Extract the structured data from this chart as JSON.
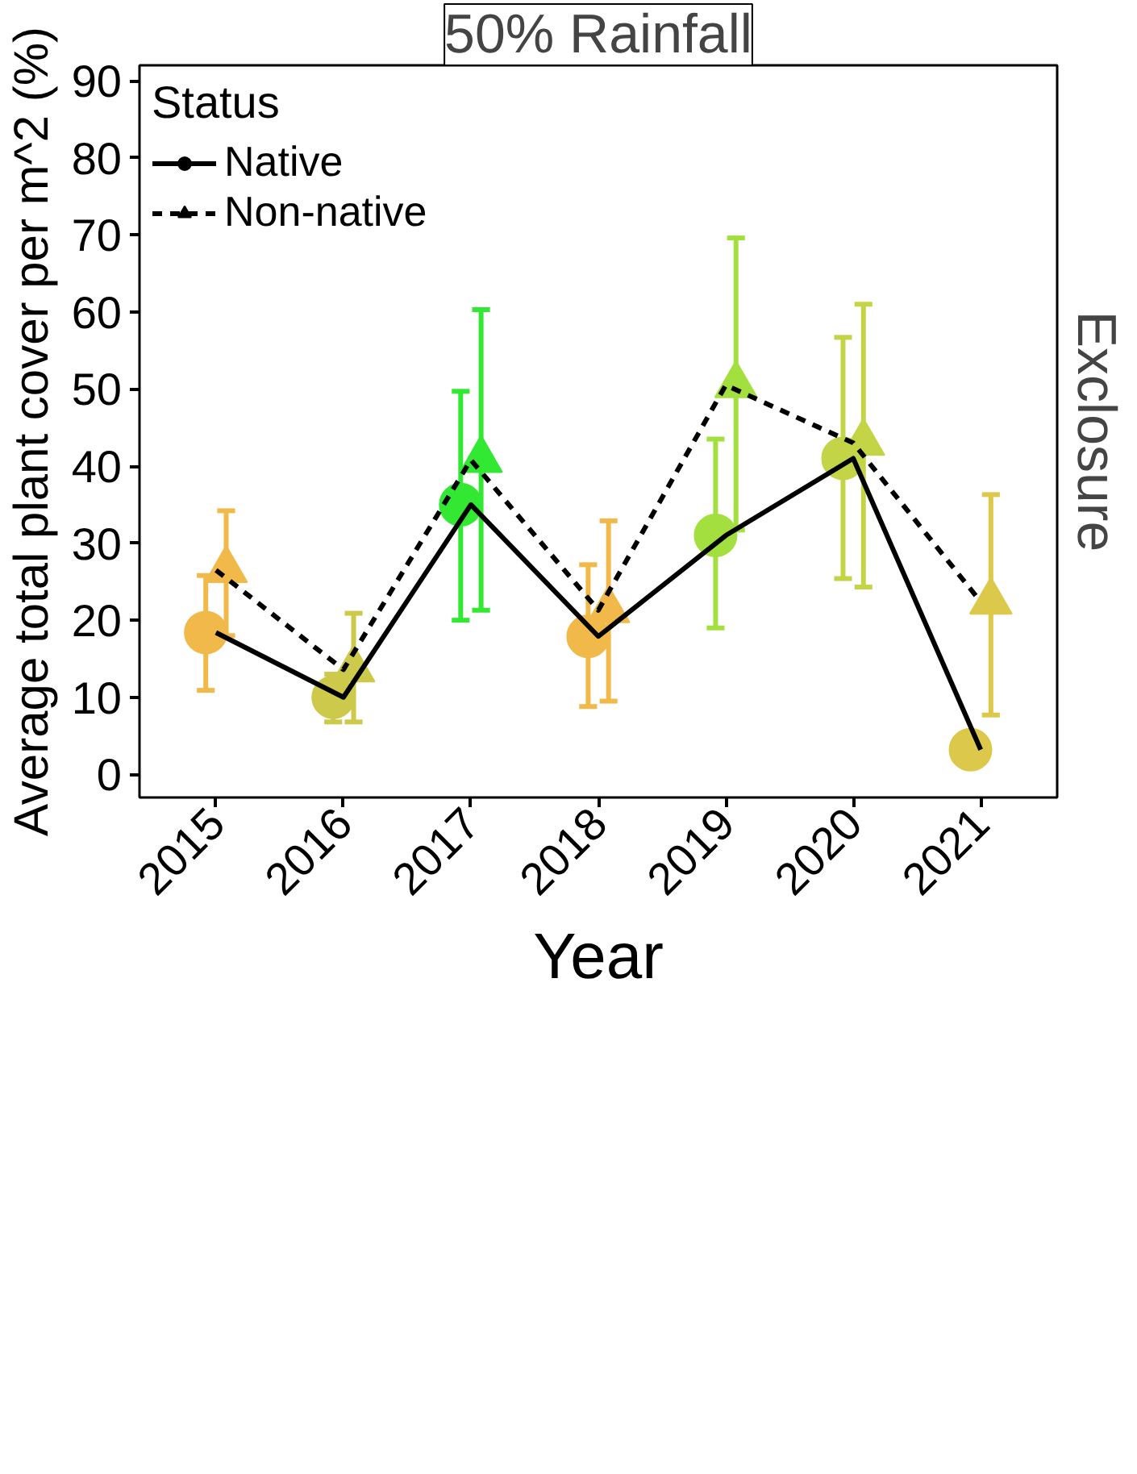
{
  "chart_data": {
    "type": "line",
    "title": "50% Rainfall",
    "annotations": [
      "Exclosure"
    ],
    "xlabel": "Year",
    "ylabel": "Average total plant cover per m^2 (%)",
    "legend_title": "Status",
    "legend": "top left",
    "categories": [
      "2015",
      "2016",
      "2017",
      "2018",
      "2019",
      "2020",
      "2021"
    ],
    "ylim": [
      -3,
      92
    ],
    "yticks": [
      0,
      10,
      20,
      30,
      40,
      50,
      60,
      70,
      80,
      90
    ],
    "series": [
      {
        "name": "Native",
        "color": "#000000",
        "marker": "circle",
        "line_style": "solid",
        "colors": [
          "#f0b94a",
          "#cdc94a",
          "#33e833",
          "#f0b94a",
          "#a3e03f",
          "#c3d447",
          "#dcc84a"
        ],
        "values": [
          18.4,
          10,
          35,
          17.9,
          31,
          41,
          3.2
        ],
        "errors": [
          [
            10.9,
            25.8
          ],
          [
            6.8,
            13
          ],
          [
            20,
            49.7
          ],
          [
            8.8,
            27.2
          ],
          [
            19,
            43.5
          ],
          [
            25.4,
            56.7
          ],
          null
        ]
      },
      {
        "name": "Non-native",
        "color": "#000000",
        "marker": "triangle",
        "line_style": "dashed",
        "colors": [
          "#f0b94a",
          "#cdc94a",
          "#33e833",
          "#f0b94a",
          "#a3e03f",
          "#c3d447",
          "#dcc84a"
        ],
        "values": [
          26.5,
          13.6,
          40.8,
          21.3,
          50.5,
          43,
          22.4
        ],
        "errors": [
          [
            18,
            34.2
          ],
          [
            6.8,
            20.9
          ],
          [
            21.3,
            60.3
          ],
          [
            9.5,
            32.9
          ],
          [
            31.7,
            69.6
          ],
          [
            24.3,
            61
          ],
          [
            7.7,
            36.3
          ]
        ]
      }
    ]
  }
}
